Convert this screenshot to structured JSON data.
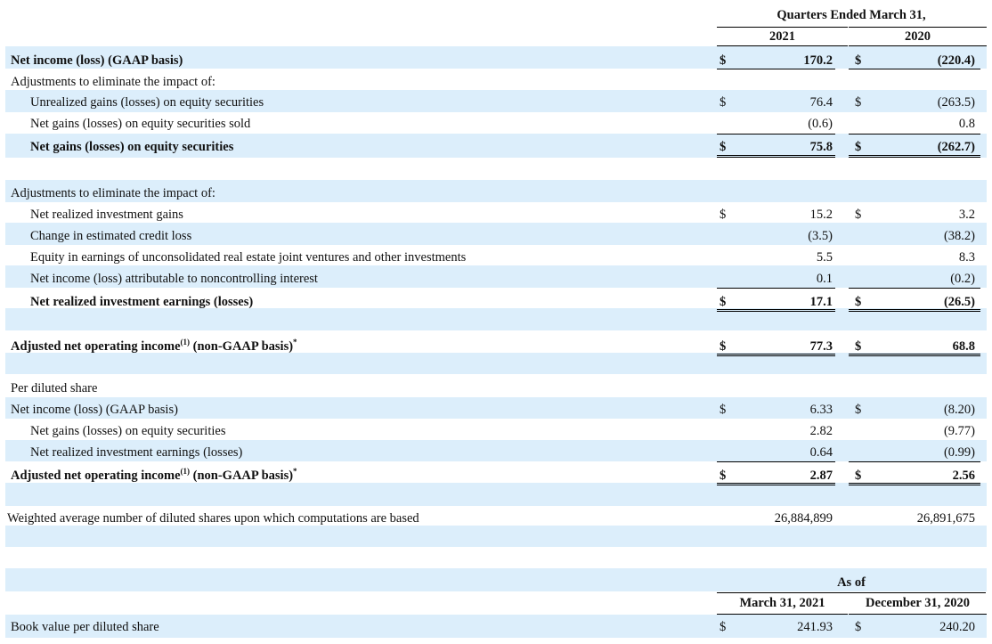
{
  "header": {
    "period_title": "Quarters Ended March 31,",
    "col1": "2021",
    "col2": "2020"
  },
  "rows": [
    {
      "label": "Net income (loss) (GAAP basis)",
      "bold": true,
      "indent": 0,
      "d1": "$",
      "v1": "170.2",
      "d2": "$",
      "v2": "(220.4)"
    },
    {
      "label": "Adjustments to eliminate the impact of:",
      "bold": false,
      "indent": 0,
      "d1": "",
      "v1": "",
      "d2": "",
      "v2": ""
    },
    {
      "label": "Unrealized gains (losses) on equity securities",
      "bold": false,
      "indent": 1,
      "d1": "$",
      "v1": "76.4",
      "d2": "$",
      "v2": "(263.5)"
    },
    {
      "label": "Net gains (losses) on equity securities sold",
      "bold": false,
      "indent": 1,
      "d1": "",
      "v1": "(0.6)",
      "d2": "",
      "v2": "0.8"
    },
    {
      "label": "Net gains (losses) on equity securities",
      "bold": true,
      "indent": 1,
      "d1": "$",
      "v1": "75.8",
      "d2": "$",
      "v2": "(262.7)"
    },
    {
      "label": "Adjustments to eliminate the impact of:",
      "bold": false,
      "indent": 0,
      "d1": "",
      "v1": "",
      "d2": "",
      "v2": ""
    },
    {
      "label": "Net realized investment gains",
      "bold": false,
      "indent": 1,
      "d1": "$",
      "v1": "15.2",
      "d2": "$",
      "v2": "3.2"
    },
    {
      "label": "Change in estimated credit loss",
      "bold": false,
      "indent": 1,
      "d1": "",
      "v1": "(3.5)",
      "d2": "",
      "v2": "(38.2)"
    },
    {
      "label": "Equity in earnings of unconsolidated real estate joint ventures and other investments",
      "bold": false,
      "indent": 1,
      "d1": "",
      "v1": "5.5",
      "d2": "",
      "v2": "8.3"
    },
    {
      "label": "Net income (loss) attributable to noncontrolling interest",
      "bold": false,
      "indent": 1,
      "d1": "",
      "v1": "0.1",
      "d2": "",
      "v2": "(0.2)"
    },
    {
      "label": "Net realized investment earnings (losses)",
      "bold": true,
      "indent": 1,
      "d1": "$",
      "v1": "17.1",
      "d2": "$",
      "v2": "(26.5)"
    },
    {
      "label": "Adjusted net operating income",
      "sup": "(1)",
      "suffix": " (non-GAAP basis)",
      "sup2": "*",
      "bold": true,
      "indent": 0,
      "d1": "$",
      "v1": "77.3",
      "d2": "$",
      "v2": "68.8"
    },
    {
      "label": "Per diluted share",
      "bold": false,
      "indent": 0,
      "d1": "",
      "v1": "",
      "d2": "",
      "v2": ""
    },
    {
      "label": "Net income (loss) (GAAP basis)",
      "bold": false,
      "indent": 0,
      "d1": "$",
      "v1": "6.33",
      "d2": "$",
      "v2": "(8.20)"
    },
    {
      "label": "Net gains (losses) on equity securities",
      "bold": false,
      "indent": 1,
      "d1": "",
      "v1": "2.82",
      "d2": "",
      "v2": "(9.77)"
    },
    {
      "label": "Net realized investment earnings (losses)",
      "bold": false,
      "indent": 1,
      "d1": "",
      "v1": "0.64",
      "d2": "",
      "v2": "(0.99)"
    },
    {
      "label": "Adjusted net operating income",
      "sup": "(1)",
      "suffix": " (non-GAAP basis)",
      "sup2": "*",
      "bold": true,
      "indent": 0,
      "d1": "$",
      "v1": "2.87",
      "d2": "$",
      "v2": "2.56"
    },
    {
      "label": "Weighted average number of diluted shares upon which computations are based",
      "bold": false,
      "indent": -1,
      "d1": "",
      "v1": "26,884,899",
      "d2": "",
      "v2": "26,891,675"
    }
  ],
  "book_value": {
    "header": "As of",
    "col1": "March 31, 2021",
    "col2": "December 31, 2020",
    "label": "Book value per diluted share",
    "d1": "$",
    "v1": "241.93",
    "d2": "$",
    "v2": "240.20"
  }
}
